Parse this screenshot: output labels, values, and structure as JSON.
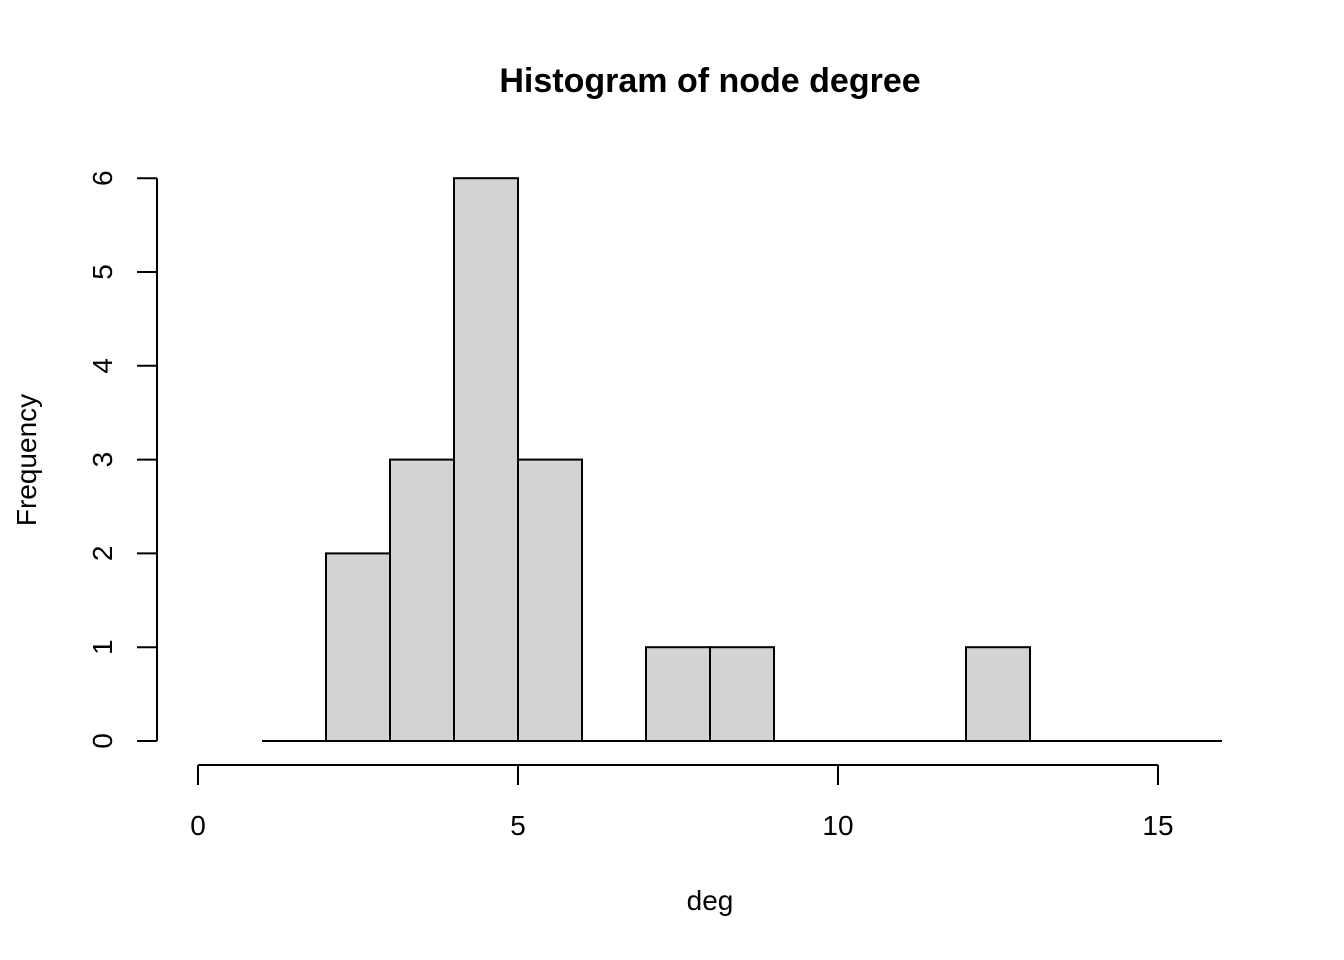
{
  "chart_data": {
    "type": "bar",
    "title": "Histogram of node degree",
    "xlabel": "deg",
    "ylabel": "Frequency",
    "bins": [
      {
        "start": 0,
        "end": 1,
        "count": 0
      },
      {
        "start": 1,
        "end": 2,
        "count": 0
      },
      {
        "start": 2,
        "end": 3,
        "count": 2
      },
      {
        "start": 3,
        "end": 4,
        "count": 3
      },
      {
        "start": 4,
        "end": 5,
        "count": 6
      },
      {
        "start": 5,
        "end": 6,
        "count": 3
      },
      {
        "start": 6,
        "end": 7,
        "count": 0
      },
      {
        "start": 7,
        "end": 8,
        "count": 1
      },
      {
        "start": 8,
        "end": 9,
        "count": 1
      },
      {
        "start": 9,
        "end": 10,
        "count": 0
      },
      {
        "start": 10,
        "end": 11,
        "count": 0
      },
      {
        "start": 11,
        "end": 12,
        "count": 0
      },
      {
        "start": 12,
        "end": 13,
        "count": 1
      },
      {
        "start": 13,
        "end": 14,
        "count": 0
      },
      {
        "start": 14,
        "end": 15,
        "count": 0
      },
      {
        "start": 15,
        "end": 16,
        "count": 0
      }
    ],
    "xlim": [
      0,
      16
    ],
    "ylim": [
      0,
      6
    ],
    "xticks": [
      "0",
      "5",
      "10",
      "15"
    ],
    "yticks": [
      "0",
      "1",
      "2",
      "3",
      "4",
      "5",
      "6"
    ],
    "bar_color": "#d3d3d3",
    "grid": false,
    "legend": "none"
  }
}
